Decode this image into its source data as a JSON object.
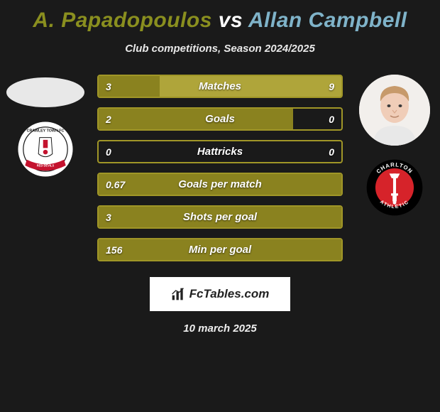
{
  "header": {
    "player1_name": "A. Papadopoulos",
    "vs_text": "vs",
    "player2_name": "Allan Campbell",
    "player1_color": "#8a8f1f",
    "player2_color": "#7fb3c9",
    "subtitle": "Club competitions, Season 2024/2025"
  },
  "players": {
    "left": {
      "avatar_bg": "#e8e8e8",
      "crest": {
        "outer_bg": "#ffffff",
        "inner_bg": "#ffffff",
        "ring": "#1a1a1a",
        "banner_color": "#c4122e",
        "text_top": "CRAWLEY TOWN FC",
        "text_bottom": "RED DEVILS"
      }
    },
    "right": {
      "avatar_bg": "#f2efec",
      "face_skin": "#f0cdb8",
      "hair": "#c79a6b",
      "shirt": "#e8e8e8",
      "crest": {
        "outer_bg": "#000000",
        "inner_bg": "#d6232a",
        "sword": "#ffffff",
        "text_top": "CHARLTON",
        "text_bottom": "ATHLETIC"
      }
    }
  },
  "stats": {
    "accent": "#a09627",
    "accent_dark": "#8a821f",
    "right_fill": "#afa53a",
    "rows": [
      {
        "label": "Matches",
        "left_val": "3",
        "right_val": "9",
        "left_pct": 25,
        "right_pct": 75
      },
      {
        "label": "Goals",
        "left_val": "2",
        "right_val": "0",
        "left_pct": 80,
        "right_pct": 0
      },
      {
        "label": "Hattricks",
        "left_val": "0",
        "right_val": "0",
        "left_pct": 0,
        "right_pct": 0
      },
      {
        "label": "Goals per match",
        "left_val": "0.67",
        "right_val": "",
        "left_pct": 100,
        "right_pct": 0
      },
      {
        "label": "Shots per goal",
        "left_val": "3",
        "right_val": "",
        "left_pct": 100,
        "right_pct": 0
      },
      {
        "label": "Min per goal",
        "left_val": "156",
        "right_val": "",
        "left_pct": 100,
        "right_pct": 0
      }
    ]
  },
  "footer": {
    "brand": "FcTables.com",
    "date": "10 march 2025"
  }
}
